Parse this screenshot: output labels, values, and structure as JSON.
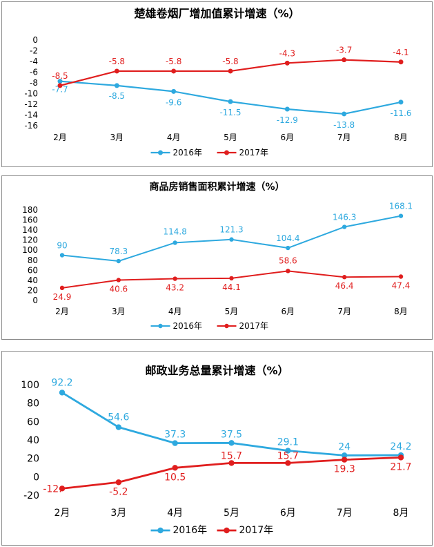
{
  "colors": {
    "s2016": "#2ea9df",
    "s2017": "#e01e1e"
  },
  "chart_data": [
    {
      "type": "line",
      "title": "楚雄卷烟厂增加值累计增速（%）",
      "categories": [
        "2月",
        "3月",
        "4月",
        "5月",
        "6月",
        "7月",
        "8月"
      ],
      "ylim": [
        -16,
        0
      ],
      "yticks": [
        0,
        -2,
        -4,
        -6,
        -8,
        -10,
        -12,
        -14,
        -16
      ],
      "yticks_text": [
        "0",
        "-2",
        "-4",
        "-6",
        "-8",
        "-10",
        "-12",
        "-14",
        "-16"
      ],
      "grid": false,
      "legend": "bottom",
      "series": [
        {
          "name": "2016年",
          "values": [
            -7.7,
            -8.5,
            -9.6,
            -11.5,
            -12.9,
            -13.8,
            -11.6
          ],
          "labels": [
            "-7.7",
            "-8.5",
            "-9.6",
            "-11.5",
            "-12.9",
            "-13.8",
            "-11.6"
          ]
        },
        {
          "name": "2017年",
          "values": [
            -8.5,
            -5.8,
            -5.8,
            -5.8,
            -4.3,
            -3.7,
            -4.1
          ],
          "labels": [
            "-8.5",
            "-5.8",
            "-5.8",
            "-5.8",
            "-4.3",
            "-3.7",
            "-4.1"
          ]
        }
      ]
    },
    {
      "type": "line",
      "title": "商品房销售面积累计增速（%）",
      "categories": [
        "2月",
        "3月",
        "4月",
        "5月",
        "6月",
        "7月",
        "8月"
      ],
      "ylim": [
        0,
        180
      ],
      "yticks": [
        180,
        160,
        140,
        120,
        100,
        80,
        60,
        40,
        20,
        0
      ],
      "yticks_text": [
        "180",
        "160",
        "140",
        "120",
        "100",
        "80",
        "60",
        "40",
        "20",
        "0"
      ],
      "grid": false,
      "legend": "bottom",
      "series": [
        {
          "name": "2016年",
          "values": [
            90,
            78.3,
            114.8,
            121.3,
            104.4,
            146.3,
            168.1
          ],
          "labels": [
            "90",
            "78.3",
            "114.8",
            "121.3",
            "104.4",
            "146.3",
            "168.1"
          ]
        },
        {
          "name": "2017年",
          "values": [
            24.9,
            40.6,
            43.2,
            44.1,
            58.6,
            46.4,
            47.4
          ],
          "labels": [
            "24.9",
            "40.6",
            "43.2",
            "44.1",
            "58.6",
            "46.4",
            "47.4"
          ]
        }
      ]
    },
    {
      "type": "line",
      "title": "邮政业务总量累计增速（%）",
      "categories": [
        "2月",
        "3月",
        "4月",
        "5月",
        "6月",
        "7月",
        "8月"
      ],
      "ylim": [
        -20,
        100
      ],
      "yticks": [
        100,
        80,
        60,
        40,
        20,
        0,
        -20
      ],
      "yticks_text": [
        "100",
        "80",
        "60",
        "40",
        "20",
        "0",
        "-20"
      ],
      "grid": false,
      "legend": "bottom",
      "series": [
        {
          "name": "2016年",
          "values": [
            92.2,
            54.6,
            37.3,
            37.5,
            29.1,
            24,
            24.2
          ],
          "labels": [
            "92.2",
            "54.6",
            "37.3",
            "37.5",
            "29.1",
            "24",
            "24.2"
          ]
        },
        {
          "name": "2017年",
          "values": [
            -12,
            -5.2,
            10.5,
            15.7,
            15.7,
            19.3,
            21.7
          ],
          "labels": [
            "-12.",
            "-5.2",
            "10.5",
            "15.7",
            "15.7",
            "19.3",
            "21.7"
          ]
        }
      ]
    }
  ]
}
